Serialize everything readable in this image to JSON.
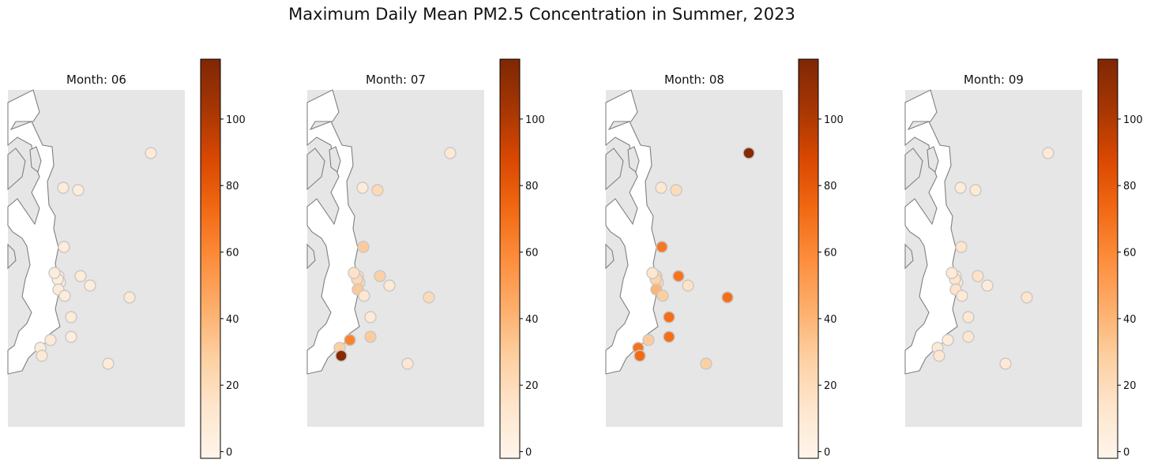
{
  "title": "Maximum Daily Mean PM2.5 Concentration in Summer, 2023",
  "colorbar": {
    "colormap": "Oranges",
    "range": [
      -2,
      118
    ],
    "ticks": [
      "0",
      "20",
      "40",
      "60",
      "80",
      "100"
    ],
    "colors": [
      "#fff5eb",
      "#fee6ce",
      "#fdd0a2",
      "#fdae6b",
      "#fd8d3c",
      "#f16913",
      "#d94801",
      "#a63603",
      "#7f2704"
    ]
  },
  "colors": {
    "map_background": "#e6e6e6",
    "water": "#ffffff",
    "coast_stroke": "#808080",
    "marker_edge": "#c8c8c8"
  },
  "chart_data": [
    {
      "type": "scatter",
      "title": "Month: 06",
      "series": [
        {
          "values": [
            9,
            8,
            6,
            7,
            6,
            10,
            8,
            5,
            8,
            7,
            10,
            8,
            6,
            9,
            7,
            10,
            9,
            7,
            6
          ]
        }
      ]
    },
    {
      "type": "scatter",
      "title": "Month: 07",
      "series": [
        {
          "values": [
            10,
            8,
            22,
            30,
            20,
            24,
            27,
            22,
            31,
            12,
            21,
            9,
            30,
            62,
            28,
            115,
            12,
            15,
            10
          ]
        }
      ]
    },
    {
      "type": "scatter",
      "title": "Month: 08",
      "series": [
        {
          "values": [
            115,
            12,
            20,
            67,
            28,
            25,
            68,
            25,
            40,
            29,
            70,
            71,
            71,
            30,
            69,
            72,
            28,
            12,
            16
          ]
        }
      ]
    },
    {
      "type": "scatter",
      "title": "Month: 09",
      "series": [
        {
          "values": [
            9,
            8,
            10,
            14,
            10,
            12,
            15,
            14,
            15,
            10,
            14,
            11,
            12,
            8,
            10,
            12,
            10,
            9,
            7
          ]
        }
      ]
    }
  ]
}
